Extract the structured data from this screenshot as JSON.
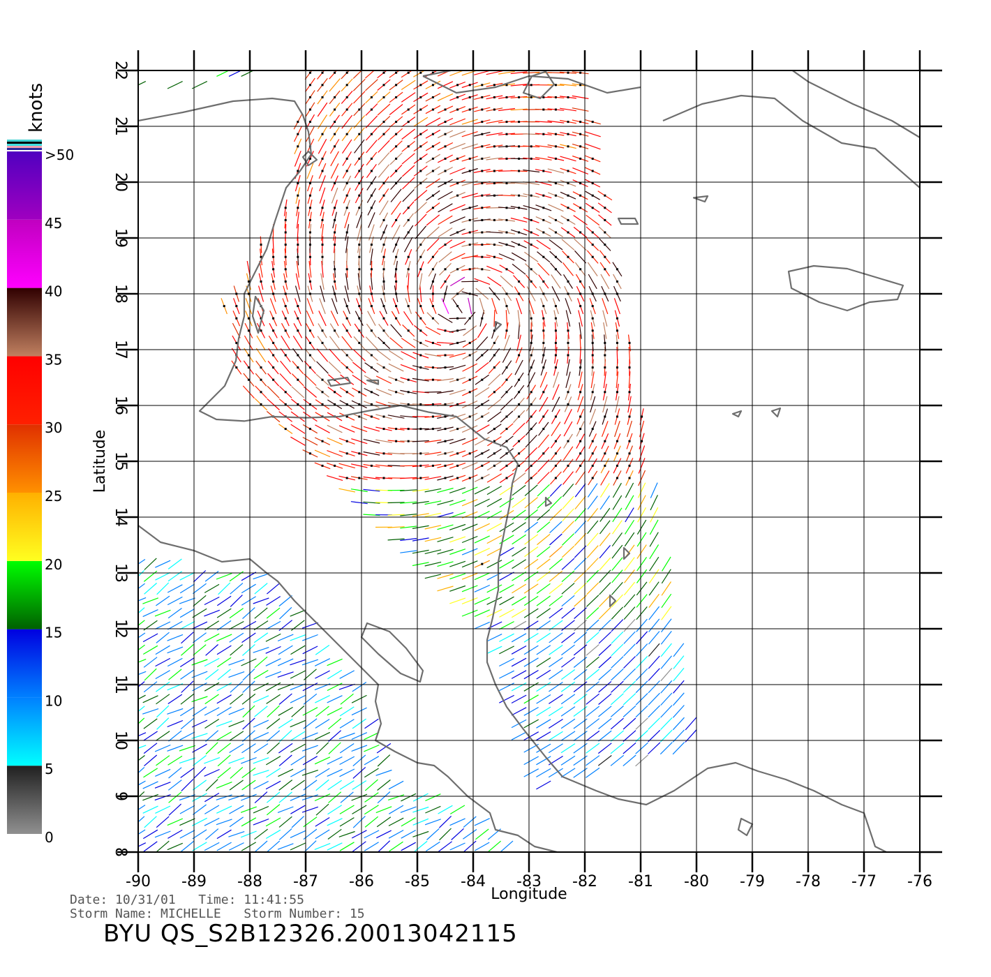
{
  "map": {
    "region": "Western Caribbean",
    "lon_range": [
      -90,
      -76
    ],
    "lat_range": [
      8,
      22
    ],
    "x_label": "Longitude",
    "y_label": "Latitude",
    "x_ticks": [
      "-90",
      "-89",
      "-88",
      "-87",
      "-86",
      "-85",
      "-84",
      "-83",
      "-82",
      "-81",
      "-80",
      "-79",
      "-78",
      "-77",
      "-76"
    ],
    "y_ticks": [
      "8",
      "9",
      "10",
      "11",
      "12",
      "13",
      "14",
      "15",
      "16",
      "17",
      "18",
      "19",
      "20",
      "21",
      "22"
    ],
    "coast_color": "#6e6e6e",
    "grid_color": "#000000"
  },
  "colorbar": {
    "unit": "knots",
    "labels": [
      {
        "v": 0,
        "text": "0"
      },
      {
        "v": 5,
        "text": "5"
      },
      {
        "v": 10,
        "text": "10"
      },
      {
        "v": 15,
        "text": "15"
      },
      {
        "v": 20,
        "text": "20"
      },
      {
        "v": 25,
        "text": "25"
      },
      {
        "v": 30,
        "text": "30"
      },
      {
        "v": 35,
        "text": "35"
      },
      {
        "v": 40,
        "text": "40"
      },
      {
        "v": 45,
        "text": "45"
      },
      {
        "v": 50,
        "text": ">50"
      }
    ],
    "segments": [
      {
        "from": 0,
        "to": 5,
        "c1": "#909090",
        "c2": "#202020"
      },
      {
        "from": 5,
        "to": 10,
        "c1": "#00ffff",
        "c2": "#0080ff"
      },
      {
        "from": 10,
        "to": 15,
        "c1": "#0080ff",
        "c2": "#0000e0"
      },
      {
        "from": 15,
        "to": 20,
        "c1": "#006000",
        "c2": "#00ff00"
      },
      {
        "from": 20,
        "to": 25,
        "c1": "#ffff20",
        "c2": "#ffb000"
      },
      {
        "from": 25,
        "to": 30,
        "c1": "#ff9000",
        "c2": "#e03000"
      },
      {
        "from": 30,
        "to": 35,
        "c1": "#ff2000",
        "c2": "#ff0000"
      },
      {
        "from": 35,
        "to": 40,
        "c1": "#c08060",
        "c2": "#300000"
      },
      {
        "from": 40,
        "to": 45,
        "c1": "#ff00ff",
        "c2": "#c000c0"
      },
      {
        "from": 45,
        "to": 50,
        "c1": "#a000c0",
        "c2": "#5000c0"
      }
    ]
  },
  "footer": {
    "date_line": "Date: 10/31/01   Time: 11:41:55",
    "storm_line": "Storm Name: MICHELLE   Storm Number: 15",
    "file_id": "BYU QS_S2B12326.20013042115"
  }
}
